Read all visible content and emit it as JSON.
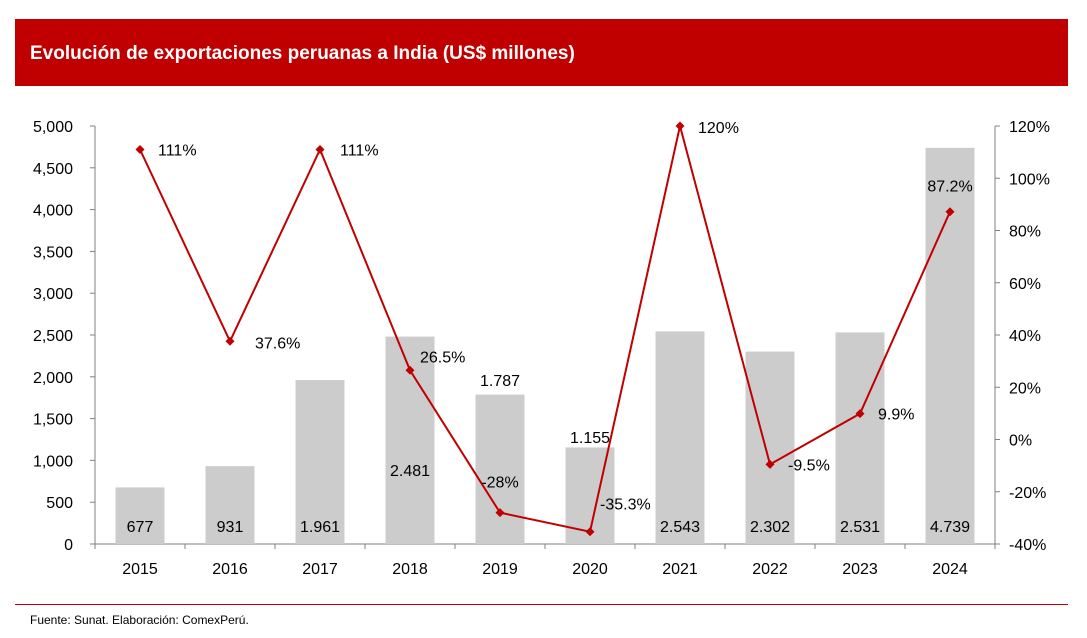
{
  "header": {
    "title": "Evolución de exportaciones peruanas a India (US$ millones)"
  },
  "footer": {
    "source": "Fuente: Sunat. Elaboración: ComexPerú."
  },
  "colors": {
    "header_bg": "#c00000",
    "bar": "#cccccc",
    "line": "#c00000",
    "footer_line": "#c00000"
  },
  "chart_data": {
    "type": "bar",
    "categories": [
      "2015",
      "2016",
      "2017",
      "2018",
      "2019",
      "2020",
      "2021",
      "2022",
      "2023",
      "2024"
    ],
    "series": [
      {
        "type": "bar",
        "axis": "left",
        "values": [
          677,
          931,
          1961,
          2481,
          1787,
          1155,
          2543,
          2302,
          2531,
          4739
        ],
        "labels": [
          "677",
          "931",
          "1.961",
          "2.481",
          "1.787",
          "1.155",
          "2.543",
          "2.302",
          "2.531",
          "4.739"
        ]
      },
      {
        "type": "line",
        "axis": "right",
        "values": [
          111,
          37.6,
          111,
          26.5,
          -28,
          -35.3,
          120,
          -9.5,
          9.9,
          87.2
        ],
        "labels": [
          "111%",
          "37.6%",
          "111%",
          "26.5%",
          "-28%",
          "-35.3%",
          "120%",
          "-9.5%",
          "9.9%",
          "87.2%"
        ]
      }
    ],
    "y_left": {
      "min": 0,
      "max": 5000,
      "step": 500,
      "ticks": [
        "0",
        "500",
        "1,000",
        "1,500",
        "2,000",
        "2,500",
        "3,000",
        "3,500",
        "4,000",
        "4,500",
        "5,000"
      ]
    },
    "y_right": {
      "min": -40,
      "max": 120,
      "step": 20,
      "ticks": [
        "-40%",
        "-20%",
        "0%",
        "20%",
        "40%",
        "60%",
        "80%",
        "100%",
        "120%"
      ]
    },
    "grid": false,
    "legend": "none"
  }
}
